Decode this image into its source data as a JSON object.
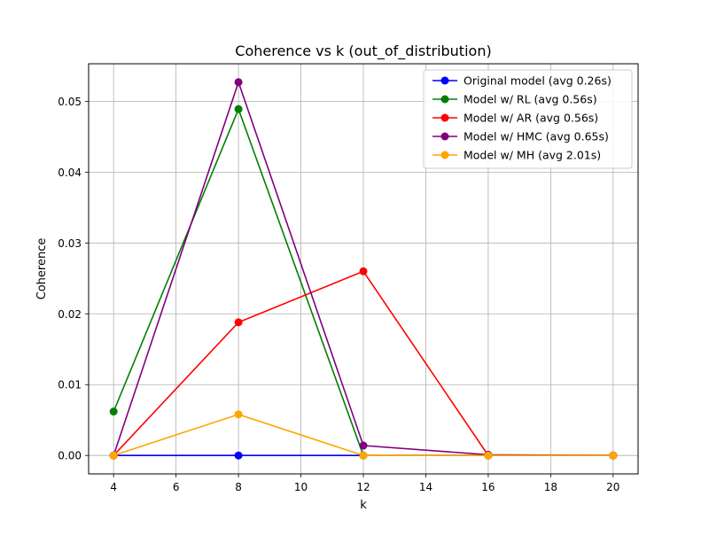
{
  "chart_data": {
    "type": "line",
    "title": "Coherence vs k (out_of_distribution)",
    "xlabel": "k",
    "ylabel": "Coherence",
    "x": [
      4,
      8,
      12,
      16,
      20
    ],
    "xlim": [
      3.2,
      20.8
    ],
    "ylim": [
      -0.0026,
      0.0553
    ],
    "xticks": [
      4,
      6,
      8,
      10,
      12,
      14,
      16,
      18,
      20
    ],
    "xtick_labels": [
      "4",
      "6",
      "8",
      "10",
      "12",
      "14",
      "16",
      "18",
      "20"
    ],
    "yticks": [
      0,
      0.01,
      0.02,
      0.03,
      0.04,
      0.05
    ],
    "ytick_labels": [
      "0.00",
      "0.01",
      "0.02",
      "0.03",
      "0.04",
      "0.05"
    ],
    "grid": true,
    "legend_position": "top-right",
    "series": [
      {
        "name": "Original model (avg 0.26s)",
        "color": "#0000ff",
        "values": [
          0.0,
          0.0,
          0.0,
          0.0,
          0.0
        ]
      },
      {
        "name": "Model w/ RL (avg 0.56s)",
        "color": "#008000",
        "values": [
          0.0062,
          0.0489,
          0.0,
          0.0,
          0.0
        ]
      },
      {
        "name": "Model w/ AR (avg 0.56s)",
        "color": "#ff0000",
        "values": [
          0.0,
          0.0188,
          0.026,
          0.0,
          0.0
        ]
      },
      {
        "name": "Model w/ HMC (avg 0.65s)",
        "color": "#800080",
        "values": [
          0.0,
          0.0527,
          0.0014,
          0.0001,
          0.0
        ]
      },
      {
        "name": "Model w/ MH (avg 2.01s)",
        "color": "#ffa500",
        "values": [
          0.0,
          0.0058,
          0.0,
          0.0,
          0.0
        ]
      }
    ]
  }
}
